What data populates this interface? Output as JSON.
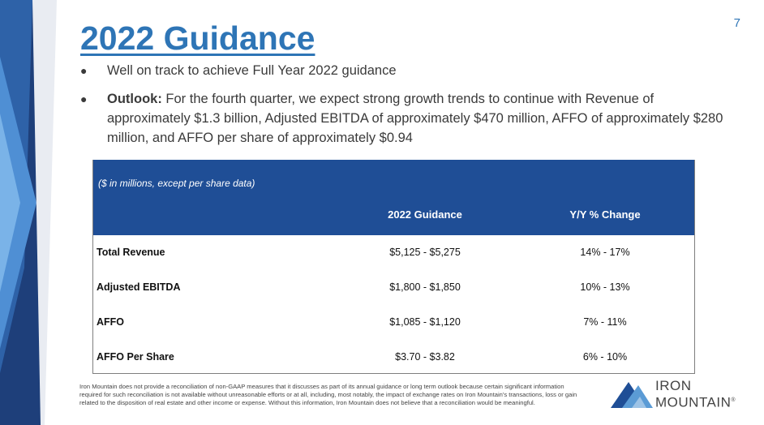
{
  "page_number": "7",
  "title": "2022 Guidance",
  "bullets": {
    "b1": "Well on track to achieve Full Year 2022 guidance",
    "b2_label": "Outlook:",
    "b2_text": "For the fourth quarter, we expect strong growth trends to continue with Revenue of approximately $1.3 billion, Adjusted EBITDA of approximately $470 million, AFFO of approximately $280 million, and AFFO per share of approximately $0.94"
  },
  "table": {
    "note": "($ in millions, except per share data)",
    "headers": [
      "2022 Guidance",
      "Y/Y % Change"
    ],
    "rows": [
      {
        "label": "Total Revenue",
        "guidance": "$5,125 - $5,275",
        "change": "14% - 17%"
      },
      {
        "label": "Adjusted EBITDA",
        "guidance": "$1,800 - $1,850",
        "change": "10% - 13%"
      },
      {
        "label": "AFFO",
        "guidance": "$1,085 - $1,120",
        "change": "7% - 11%"
      },
      {
        "label": "AFFO Per Share",
        "guidance": "$3.70 - $3.82",
        "change": "6% - 10%"
      }
    ]
  },
  "disclaimer": "Iron Mountain does not provide a reconciliation of non-GAAP measures that it discusses as part of its annual guidance or long term outlook because certain significant information required for such reconciliation is not available without unreasonable efforts or at all, including, most notably, the impact of exchange rates on Iron Mountain's transactions, loss or gain related to the disposition of real estate and other income or expense. Without this information, Iron Mountain does not believe that a reconciliation would be meaningful.",
  "logo": {
    "line1": "IRON",
    "line2": "MOUNTAIN",
    "mark": "®"
  },
  "colors": {
    "accent": "#2e75b6",
    "table_header": "#1f4e96"
  }
}
